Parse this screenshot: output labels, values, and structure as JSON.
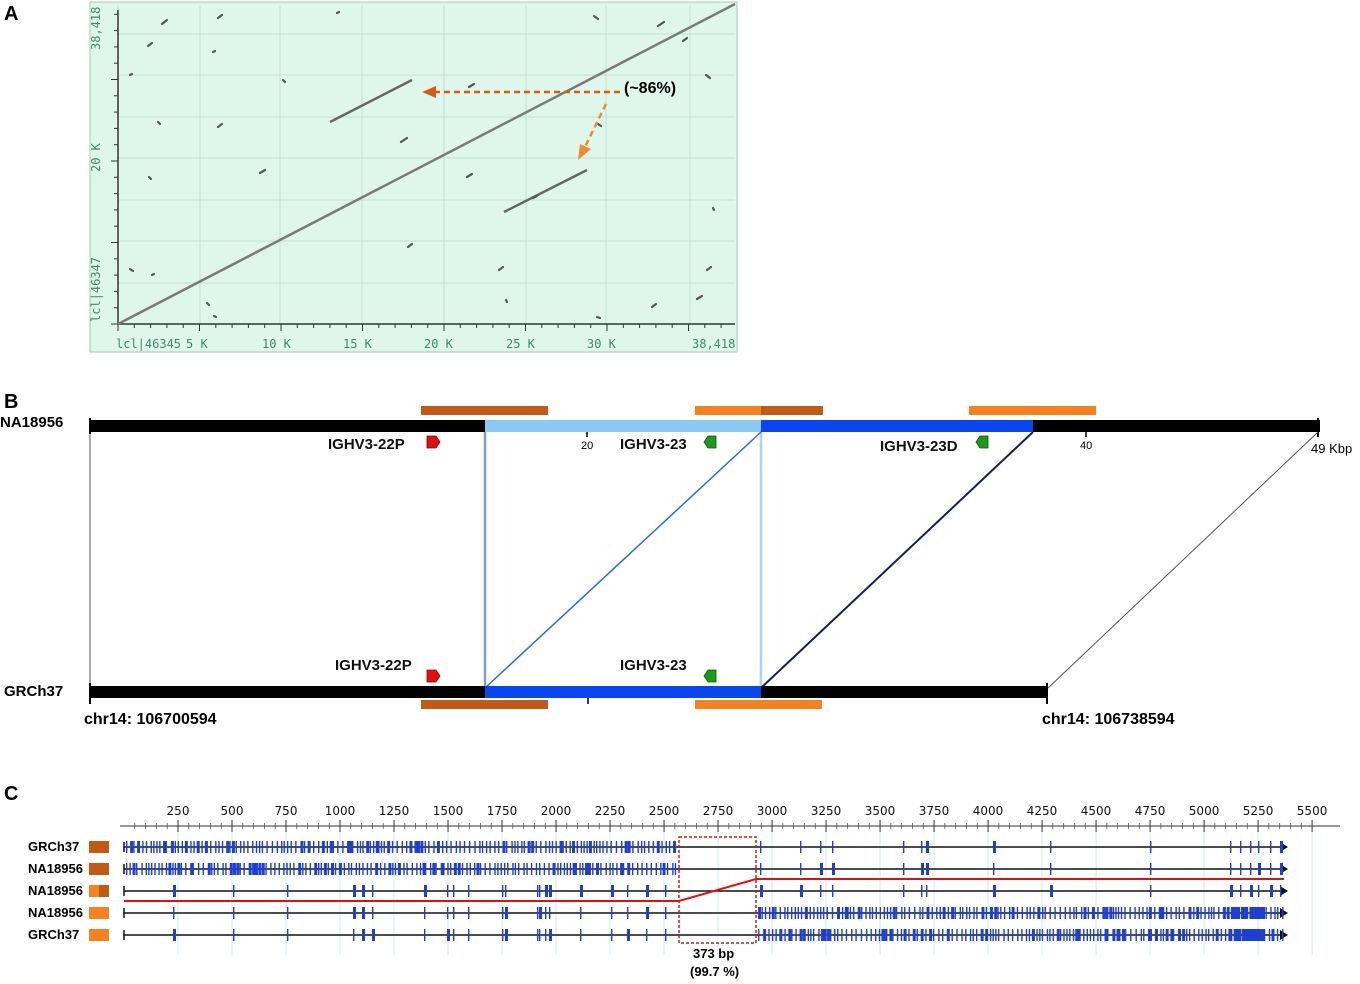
{
  "panel_a": {
    "letter": "A",
    "x_ticks": [
      "lcl|46345",
      "5 K",
      "10 K",
      "15 K",
      "20 K",
      "25 K",
      "30 K",
      "38,418"
    ],
    "y_ticks": [
      "lcl|46347",
      "20 K",
      "38,418"
    ],
    "annotation": "(~86%)",
    "bg_color": "#dff6ec",
    "arrow_color": "#e07020"
  },
  "panel_b": {
    "letter": "B",
    "top_name": "NA18956",
    "bottom_name": "GRCh37",
    "top_ticks": [
      "20",
      "40"
    ],
    "top_end": "49 Kbp",
    "genes_top": [
      "IGHV3-22P",
      "IGHV3-23",
      "IGHV3-23D"
    ],
    "genes_bottom": [
      "IGHV3-22P",
      "IGHV3-23"
    ],
    "coord_start": "chr14: 106700594",
    "coord_end": "chr14: 106738594",
    "colors": {
      "dark_orange": "#c05a16",
      "orange": "#f58220",
      "light_blue": "#8ac8f5",
      "blue": "#0a46f0",
      "red_gene": "#e01010",
      "green_gene": "#1a9a1a"
    }
  },
  "panel_c": {
    "letter": "C",
    "ruler": [
      "250",
      "500",
      "750",
      "1000",
      "1250",
      "1500",
      "1750",
      "2000",
      "2250",
      "2500",
      "2750",
      "3000",
      "3250",
      "3500",
      "3750",
      "4000",
      "4250",
      "4500",
      "4750",
      "5000",
      "5250",
      "5500"
    ],
    "rows": [
      "GRCh37",
      "NA18956",
      "NA18956",
      "NA18956",
      "GRCh37"
    ],
    "box_label": "373 bp",
    "box_pct": "(99.7 %)",
    "feature_color": "#1f3fd0"
  }
}
